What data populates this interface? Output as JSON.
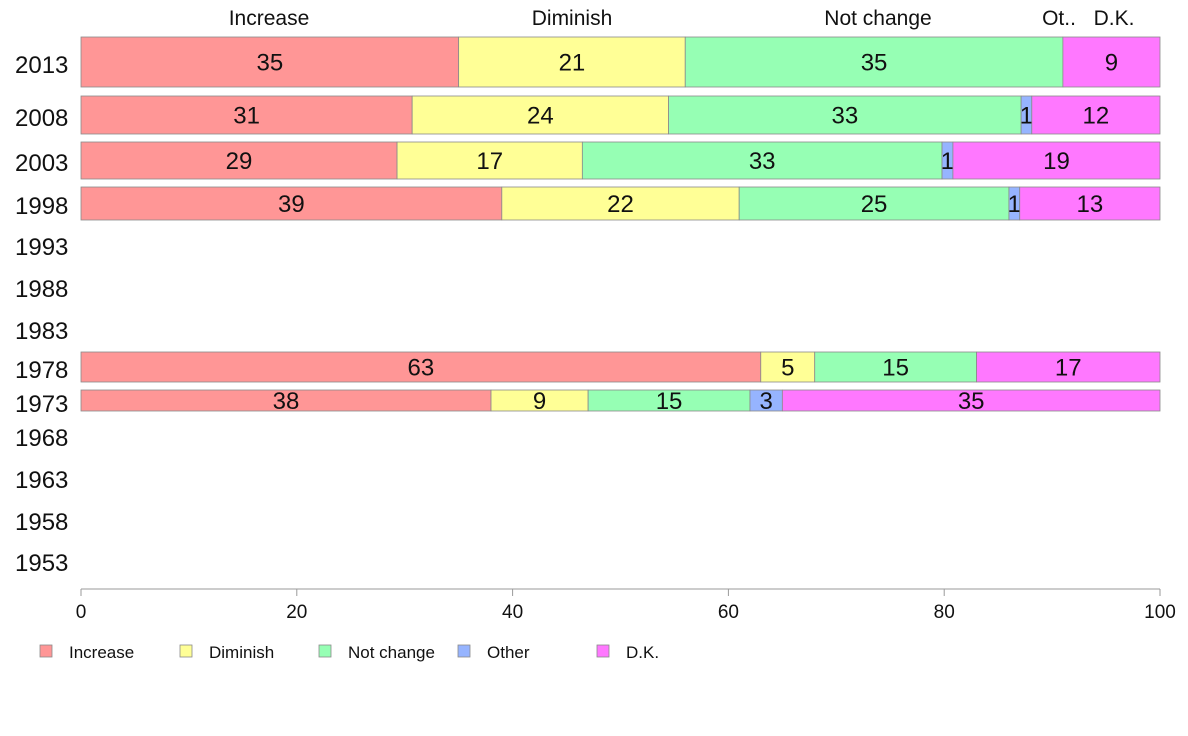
{
  "chart_data": {
    "type": "bar",
    "orientation": "horizontal",
    "stacked": true,
    "categories": [
      "2013",
      "2008",
      "2003",
      "1998",
      "1993",
      "1988",
      "1983",
      "1978",
      "1973",
      "1968",
      "1963",
      "1958",
      "1953"
    ],
    "series": [
      {
        "name": "Increase",
        "color": "#ff9696",
        "values": [
          35,
          31,
          29,
          39,
          null,
          null,
          null,
          63,
          38,
          null,
          null,
          null,
          null
        ]
      },
      {
        "name": "Diminish",
        "color": "#ffff96",
        "values": [
          21,
          24,
          17,
          22,
          null,
          null,
          null,
          5,
          9,
          null,
          null,
          null,
          null
        ]
      },
      {
        "name": "Not change",
        "color": "#96ffb4",
        "values": [
          35,
          33,
          33,
          25,
          null,
          null,
          null,
          15,
          15,
          null,
          null,
          null,
          null
        ]
      },
      {
        "name": "Other",
        "color": "#96b4ff",
        "values": [
          0,
          1,
          1,
          1,
          null,
          null,
          null,
          0,
          3,
          null,
          null,
          null,
          null
        ]
      },
      {
        "name": "D.K.",
        "color": "#ff78ff",
        "values": [
          9,
          12,
          19,
          13,
          null,
          null,
          null,
          17,
          35,
          null,
          null,
          null,
          null
        ]
      }
    ],
    "column_headers": [
      "Increase",
      "Diminish",
      "Not change",
      "Ot..",
      "D.K."
    ],
    "xlim": [
      0,
      100
    ],
    "xticks": [
      0,
      20,
      40,
      60,
      80,
      100
    ],
    "grid": false,
    "legend_position": "bottom"
  }
}
